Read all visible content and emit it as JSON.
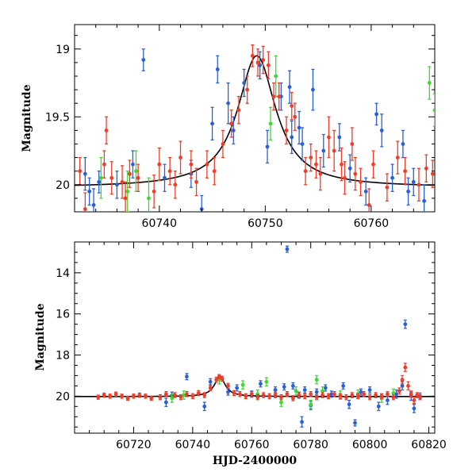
{
  "chart_data": [
    {
      "type": "scatter",
      "title": "",
      "xlabel": "",
      "ylabel": "Magnitude",
      "xlim": [
        60732,
        60766
      ],
      "ylim": [
        20.2,
        18.82
      ],
      "y_inverted": true,
      "xticks": [
        60740,
        60750,
        60760
      ],
      "yticks": [
        19,
        19.5,
        20
      ],
      "ytick_labels": [
        "19",
        "19.5",
        "20"
      ],
      "grid": false,
      "legend": "none",
      "model_curve": {
        "baseline": 20.02,
        "peak_time": 60749.2,
        "peak_mag": 19.05,
        "width_days": 2.2,
        "color": "#000000"
      },
      "series": [
        {
          "color": "#2b5fd9",
          "points": [
            [
              60733.0,
              19.92,
              0.12
            ],
            [
              60733.4,
              20.05,
              0.1
            ],
            [
              60733.8,
              20.15,
              0.12
            ],
            [
              60734.3,
              19.98,
              0.08
            ],
            [
              60736.0,
              20.0,
              0.1
            ],
            [
              60737.5,
              19.85,
              0.1
            ],
            [
              60738.5,
              19.08,
              0.08
            ],
            [
              60740.5,
              19.95,
              0.1
            ],
            [
              60743.0,
              19.92,
              0.1
            ],
            [
              60744.0,
              20.18,
              0.1
            ],
            [
              60745.0,
              19.55,
              0.12
            ],
            [
              60745.5,
              19.15,
              0.1
            ],
            [
              60746.5,
              19.4,
              0.15
            ],
            [
              60747.0,
              19.6,
              0.1
            ],
            [
              60748.0,
              19.25,
              0.1
            ],
            [
              60749.5,
              19.12,
              0.1
            ],
            [
              60750.2,
              19.72,
              0.12
            ],
            [
              60751.5,
              19.35,
              0.1
            ],
            [
              60752.3,
              19.28,
              0.12
            ],
            [
              60752.5,
              19.65,
              0.12
            ],
            [
              60753.2,
              19.58,
              0.12
            ],
            [
              60753.5,
              19.7,
              0.12
            ],
            [
              60754.5,
              19.3,
              0.15
            ],
            [
              60755.5,
              19.75,
              0.12
            ],
            [
              60757.0,
              19.65,
              0.1
            ],
            [
              60758.0,
              19.88,
              0.1
            ],
            [
              60759.5,
              20.05,
              0.1
            ],
            [
              60760.5,
              19.48,
              0.08
            ],
            [
              60761.0,
              19.6,
              0.12
            ],
            [
              60762.0,
              19.95,
              0.1
            ],
            [
              60763.0,
              19.7,
              0.1
            ],
            [
              60763.5,
              20.05,
              0.1
            ],
            [
              60764.0,
              19.98,
              0.1
            ],
            [
              60765.0,
              20.12,
              0.12
            ]
          ]
        },
        {
          "color": "#3ddb2e",
          "points": [
            [
              60734.5,
              19.95,
              0.15
            ],
            [
              60737.0,
              20.05,
              0.15
            ],
            [
              60737.8,
              19.9,
              0.15
            ],
            [
              60739.0,
              20.1,
              0.15
            ],
            [
              60750.5,
              19.55,
              0.12
            ],
            [
              60751.0,
              19.2,
              0.15
            ],
            [
              60765.5,
              19.25,
              0.12
            ],
            [
              60766.0,
              19.45,
              0.12
            ]
          ]
        },
        {
          "color": "#f23c29",
          "points": [
            [
              60732.5,
              19.9,
              0.1
            ],
            [
              60733.0,
              20.18,
              0.12
            ],
            [
              60734.8,
              19.85,
              0.1
            ],
            [
              60735.0,
              19.6,
              0.1
            ],
            [
              60735.5,
              19.95,
              0.12
            ],
            [
              60736.5,
              19.98,
              0.12
            ],
            [
              60736.8,
              20.1,
              0.12
            ],
            [
              60737.2,
              19.92,
              0.1
            ],
            [
              60738.0,
              19.95,
              0.1
            ],
            [
              60739.5,
              20.05,
              0.12
            ],
            [
              60740.0,
              19.85,
              0.12
            ],
            [
              60741.0,
              19.9,
              0.1
            ],
            [
              60741.5,
              20.0,
              0.1
            ],
            [
              60742.0,
              19.8,
              0.12
            ],
            [
              60743.0,
              19.85,
              0.1
            ],
            [
              60743.5,
              19.98,
              0.1
            ],
            [
              60744.5,
              19.85,
              0.1
            ],
            [
              60745.2,
              19.9,
              0.1
            ],
            [
              60746.0,
              19.7,
              0.1
            ],
            [
              60746.8,
              19.55,
              0.1
            ],
            [
              60747.5,
              19.45,
              0.1
            ],
            [
              60748.3,
              19.3,
              0.1
            ],
            [
              60748.8,
              19.05,
              0.08
            ],
            [
              60749.3,
              19.1,
              0.1
            ],
            [
              60749.8,
              19.08,
              0.1
            ],
            [
              60750.3,
              19.12,
              0.1
            ],
            [
              60750.8,
              19.35,
              0.1
            ],
            [
              60751.3,
              19.35,
              0.1
            ],
            [
              60752.0,
              19.6,
              0.1
            ],
            [
              60752.5,
              19.42,
              0.1
            ],
            [
              60752.8,
              19.5,
              0.1
            ],
            [
              60753.8,
              19.9,
              0.1
            ],
            [
              60754.3,
              19.8,
              0.1
            ],
            [
              60754.8,
              19.85,
              0.1
            ],
            [
              60755.2,
              19.92,
              0.12
            ],
            [
              60756.0,
              19.65,
              0.15
            ],
            [
              60756.5,
              19.75,
              0.15
            ],
            [
              60757.2,
              19.85,
              0.12
            ],
            [
              60757.5,
              19.95,
              0.12
            ],
            [
              60758.2,
              19.7,
              0.12
            ],
            [
              60758.5,
              19.92,
              0.12
            ],
            [
              60759.0,
              19.98,
              0.1
            ],
            [
              60759.8,
              20.15,
              0.12
            ],
            [
              60760.2,
              19.85,
              0.1
            ],
            [
              60761.5,
              20.02,
              0.1
            ],
            [
              60762.5,
              19.8,
              0.12
            ],
            [
              60763.2,
              19.9,
              0.1
            ],
            [
              60764.5,
              20.0,
              0.12
            ],
            [
              60765.2,
              19.88,
              0.1
            ],
            [
              60765.8,
              19.92,
              0.1
            ]
          ]
        }
      ]
    },
    {
      "type": "scatter",
      "title": "",
      "xlabel": "HJD-2400000",
      "ylabel": "Magnitude",
      "xlim": [
        60700,
        60822
      ],
      "ylim": [
        21.8,
        12.5
      ],
      "y_inverted": true,
      "xticks": [
        60720,
        60740,
        60760,
        60780,
        60800,
        60820
      ],
      "yticks": [
        14,
        16,
        18,
        20
      ],
      "ytick_labels": [
        "14",
        "16",
        "18",
        "20"
      ],
      "grid": false,
      "legend": "none",
      "model_curve": {
        "baseline": 20.02,
        "peak_time": 60749.2,
        "peak_mag": 19.05,
        "width_days": 2.2,
        "color": "#000000"
      },
      "series": [
        {
          "color": "#2b5fd9",
          "points": [
            [
              60731,
              20.3,
              0.2
            ],
            [
              60733,
              19.95,
              0.15
            ],
            [
              60738,
              19.05,
              0.15
            ],
            [
              60744,
              20.5,
              0.2
            ],
            [
              60746,
              19.3,
              0.15
            ],
            [
              60752,
              19.8,
              0.15
            ],
            [
              60755,
              19.6,
              0.15
            ],
            [
              60760,
              19.9,
              0.15
            ],
            [
              60763,
              19.4,
              0.15
            ],
            [
              60768,
              19.7,
              0.15
            ],
            [
              60771,
              19.55,
              0.15
            ],
            [
              60772,
              12.85,
              0.15
            ],
            [
              60774,
              19.5,
              0.15
            ],
            [
              60776,
              19.95,
              0.15
            ],
            [
              60777,
              21.25,
              0.25
            ],
            [
              60778,
              19.7,
              0.15
            ],
            [
              60780,
              20.45,
              0.2
            ],
            [
              60782,
              19.8,
              0.15
            ],
            [
              60785,
              19.6,
              0.15
            ],
            [
              60787,
              19.9,
              0.15
            ],
            [
              60791,
              19.5,
              0.15
            ],
            [
              60793,
              20.4,
              0.2
            ],
            [
              60795,
              21.3,
              0.15
            ],
            [
              60797,
              19.8,
              0.15
            ],
            [
              60800,
              19.7,
              0.15
            ],
            [
              60803,
              20.5,
              0.2
            ],
            [
              60806,
              20.2,
              0.2
            ],
            [
              60809,
              19.9,
              0.2
            ],
            [
              60811,
              19.5,
              0.2
            ],
            [
              60812,
              16.5,
              0.2
            ],
            [
              60814,
              20.0,
              0.2
            ],
            [
              60815,
              20.6,
              0.2
            ],
            [
              60817,
              20.0,
              0.15
            ]
          ]
        },
        {
          "color": "#3ddb2e",
          "points": [
            [
              60733,
              20.1,
              0.2
            ],
            [
              60737,
              19.95,
              0.2
            ],
            [
              60749,
              19.2,
              0.2
            ],
            [
              60757,
              19.45,
              0.2
            ],
            [
              60762,
              19.9,
              0.2
            ],
            [
              60765,
              19.3,
              0.2
            ],
            [
              60770,
              20.3,
              0.2
            ],
            [
              60775,
              19.75,
              0.2
            ],
            [
              60780,
              20.4,
              0.2
            ],
            [
              60782,
              19.2,
              0.2
            ],
            [
              60784,
              19.75,
              0.2
            ],
            [
              60790,
              19.95,
              0.2
            ],
            [
              60796,
              19.9,
              0.2
            ],
            [
              60804,
              20.1,
              0.2
            ],
            [
              60808,
              19.85,
              0.2
            ]
          ]
        },
        {
          "color": "#f23c29",
          "points": [
            [
              60708,
              20.05,
              0.1
            ],
            [
              60710,
              19.95,
              0.1
            ],
            [
              60712,
              20.0,
              0.1
            ],
            [
              60714,
              19.9,
              0.1
            ],
            [
              60716,
              20.0,
              0.1
            ],
            [
              60718,
              20.1,
              0.1
            ],
            [
              60720,
              20.0,
              0.1
            ],
            [
              60722,
              19.95,
              0.1
            ],
            [
              60724,
              20.0,
              0.1
            ],
            [
              60726,
              20.1,
              0.1
            ],
            [
              60729,
              20.05,
              0.12
            ],
            [
              60731,
              19.9,
              0.12
            ],
            [
              60734,
              19.95,
              0.12
            ],
            [
              60736,
              20.05,
              0.12
            ],
            [
              60738,
              19.9,
              0.12
            ],
            [
              60740,
              20.0,
              0.12
            ],
            [
              60742,
              19.85,
              0.12
            ],
            [
              60744,
              19.95,
              0.12
            ],
            [
              60746,
              19.6,
              0.12
            ],
            [
              60748,
              19.2,
              0.12
            ],
            [
              60749,
              19.05,
              0.1
            ],
            [
              60750,
              19.15,
              0.12
            ],
            [
              60752,
              19.5,
              0.12
            ],
            [
              60754,
              19.85,
              0.12
            ],
            [
              60756,
              19.9,
              0.12
            ],
            [
              60758,
              20.0,
              0.12
            ],
            [
              60760,
              19.9,
              0.12
            ],
            [
              60762,
              20.05,
              0.12
            ],
            [
              60764,
              19.95,
              0.12
            ],
            [
              60766,
              20.0,
              0.12
            ],
            [
              60768,
              19.95,
              0.12
            ],
            [
              60770,
              20.05,
              0.12
            ],
            [
              60772,
              19.9,
              0.12
            ],
            [
              60774,
              20.1,
              0.12
            ],
            [
              60776,
              19.95,
              0.12
            ],
            [
              60778,
              20.0,
              0.12
            ],
            [
              60780,
              19.9,
              0.12
            ],
            [
              60782,
              20.05,
              0.12
            ],
            [
              60784,
              19.95,
              0.12
            ],
            [
              60786,
              20.0,
              0.12
            ],
            [
              60788,
              19.9,
              0.12
            ],
            [
              60790,
              20.0,
              0.12
            ],
            [
              60792,
              20.05,
              0.12
            ],
            [
              60794,
              19.95,
              0.12
            ],
            [
              60796,
              20.0,
              0.12
            ],
            [
              60798,
              19.9,
              0.12
            ],
            [
              60800,
              20.05,
              0.12
            ],
            [
              60802,
              19.95,
              0.12
            ],
            [
              60804,
              20.0,
              0.12
            ],
            [
              60806,
              19.9,
              0.12
            ],
            [
              60808,
              20.05,
              0.12
            ],
            [
              60810,
              19.75,
              0.15
            ],
            [
              60811,
              19.2,
              0.2
            ],
            [
              60812,
              18.6,
              0.2
            ],
            [
              60813,
              19.5,
              0.2
            ],
            [
              60814,
              19.9,
              0.15
            ],
            [
              60815,
              20.2,
              0.15
            ],
            [
              60816,
              19.95,
              0.12
            ],
            [
              60817,
              20.05,
              0.12
            ]
          ]
        }
      ]
    }
  ]
}
